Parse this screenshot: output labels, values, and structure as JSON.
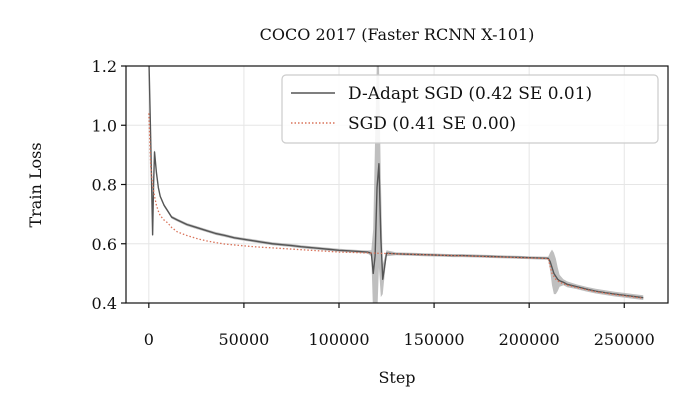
{
  "chart_data": {
    "type": "line",
    "title": "COCO 2017 (Faster RCNN X-101)",
    "xlabel": "Step",
    "ylabel": "Train Loss",
    "xlim": [
      -12000,
      273000
    ],
    "ylim": [
      0.4,
      1.2
    ],
    "xticks": [
      0,
      50000,
      100000,
      150000,
      200000,
      250000
    ],
    "yticks": [
      0.4,
      0.6,
      0.8,
      1.0,
      1.2
    ],
    "ytick_labels": [
      "0.4",
      "0.6",
      "0.8",
      "1.0",
      "1.2"
    ],
    "grid": true,
    "legend_position": "top-right",
    "series": [
      {
        "name": "D-Adapt SGD (0.42 SE 0.01)",
        "color": "#555555",
        "style": "solid",
        "band_color": "#aaaaaa",
        "x": [
          0,
          1000,
          2000,
          2500,
          3000,
          4000,
          5000,
          6000,
          8000,
          10000,
          12000,
          15000,
          20000,
          25000,
          30000,
          35000,
          40000,
          45000,
          50000,
          55000,
          60000,
          65000,
          70000,
          75000,
          80000,
          85000,
          90000,
          95000,
          100000,
          105000,
          110000,
          115000,
          117000,
          118000,
          119000,
          120000,
          121000,
          122000,
          123000,
          125000,
          130000,
          135000,
          140000,
          145000,
          150000,
          155000,
          160000,
          165000,
          170000,
          175000,
          180000,
          185000,
          190000,
          195000,
          200000,
          205000,
          210000,
          211000,
          212000,
          213000,
          214000,
          215000,
          216000,
          218000,
          220000,
          225000,
          230000,
          235000,
          240000,
          245000,
          250000,
          255000,
          260000
        ],
        "y": [
          1.24,
          0.95,
          0.63,
          0.8,
          0.91,
          0.84,
          0.79,
          0.76,
          0.73,
          0.71,
          0.69,
          0.68,
          0.665,
          0.655,
          0.645,
          0.635,
          0.628,
          0.62,
          0.615,
          0.61,
          0.605,
          0.6,
          0.597,
          0.594,
          0.59,
          0.587,
          0.584,
          0.581,
          0.578,
          0.576,
          0.574,
          0.572,
          0.568,
          0.5,
          0.56,
          0.79,
          0.87,
          0.62,
          0.48,
          0.568,
          0.566,
          0.565,
          0.564,
          0.563,
          0.562,
          0.561,
          0.56,
          0.56,
          0.559,
          0.558,
          0.557,
          0.556,
          0.555,
          0.554,
          0.553,
          0.552,
          0.551,
          0.54,
          0.52,
          0.5,
          0.49,
          0.48,
          0.475,
          0.47,
          0.463,
          0.455,
          0.447,
          0.44,
          0.435,
          0.43,
          0.426,
          0.422,
          0.418
        ],
        "band": [
          0.01,
          0.01,
          0.01,
          0.01,
          0.01,
          0.005,
          0.005,
          0.005,
          0.005,
          0.005,
          0.005,
          0.005,
          0.005,
          0.005,
          0.005,
          0.005,
          0.005,
          0.005,
          0.005,
          0.005,
          0.005,
          0.005,
          0.005,
          0.005,
          0.005,
          0.005,
          0.005,
          0.005,
          0.005,
          0.005,
          0.005,
          0.005,
          0.01,
          0.15,
          0.4,
          0.45,
          0.35,
          0.2,
          0.05,
          0.01,
          0.005,
          0.005,
          0.005,
          0.005,
          0.005,
          0.005,
          0.005,
          0.005,
          0.005,
          0.005,
          0.005,
          0.005,
          0.005,
          0.005,
          0.005,
          0.005,
          0.005,
          0.03,
          0.06,
          0.07,
          0.06,
          0.04,
          0.02,
          0.01,
          0.01,
          0.008,
          0.008,
          0.008,
          0.008,
          0.008,
          0.008,
          0.008,
          0.008
        ]
      },
      {
        "name": "SGD (0.41 SE 0.00)",
        "color": "#d9735a",
        "style": "dotted",
        "x": [
          0,
          1000,
          2000,
          3000,
          4000,
          5000,
          6000,
          8000,
          10000,
          12000,
          15000,
          20000,
          25000,
          30000,
          35000,
          40000,
          45000,
          50000,
          55000,
          60000,
          65000,
          70000,
          75000,
          80000,
          85000,
          90000,
          95000,
          100000,
          105000,
          110000,
          115000,
          120000,
          125000,
          130000,
          135000,
          140000,
          145000,
          150000,
          155000,
          160000,
          165000,
          170000,
          175000,
          180000,
          185000,
          190000,
          195000,
          200000,
          205000,
          210000,
          212000,
          214000,
          216000,
          218000,
          220000,
          225000,
          230000,
          235000,
          240000,
          245000,
          250000,
          255000,
          260000
        ],
        "y": [
          1.04,
          0.86,
          0.8,
          0.76,
          0.73,
          0.71,
          0.695,
          0.68,
          0.67,
          0.655,
          0.64,
          0.628,
          0.618,
          0.61,
          0.604,
          0.599,
          0.596,
          0.593,
          0.59,
          0.588,
          0.586,
          0.584,
          0.582,
          0.58,
          0.578,
          0.576,
          0.574,
          0.572,
          0.571,
          0.57,
          0.569,
          0.568,
          0.567,
          0.566,
          0.565,
          0.564,
          0.563,
          0.562,
          0.561,
          0.56,
          0.559,
          0.558,
          0.557,
          0.556,
          0.555,
          0.554,
          0.553,
          0.552,
          0.551,
          0.55,
          0.5,
          0.48,
          0.47,
          0.465,
          0.46,
          0.452,
          0.445,
          0.438,
          0.433,
          0.428,
          0.424,
          0.42,
          0.416
        ]
      }
    ]
  }
}
